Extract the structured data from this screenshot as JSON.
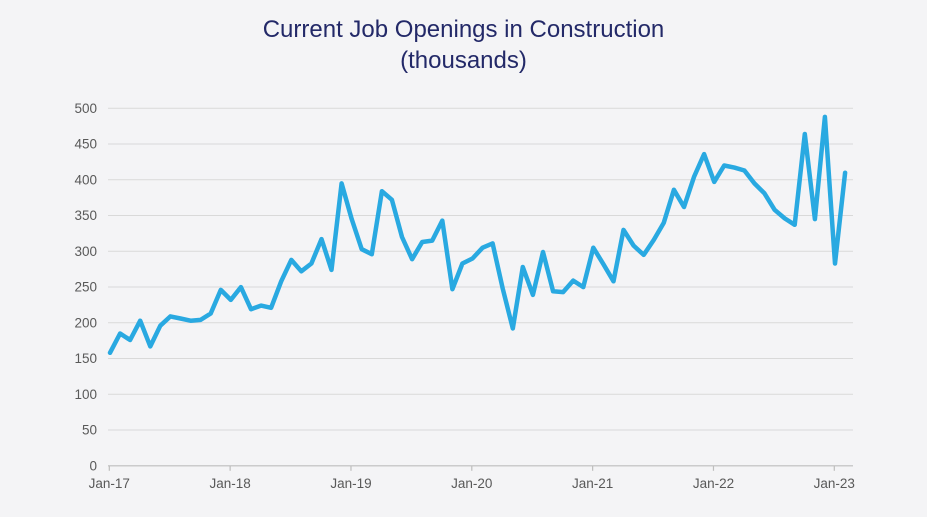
{
  "title": {
    "line1": "Current Job Openings in Construction",
    "line2": "(thousands)"
  },
  "colors": {
    "line": "#29a9e1",
    "title": "#232968",
    "background": "#f4f4f6",
    "gridline": "#d9d9d9",
    "axis": "#bdbdbd",
    "tick_label": "#595959"
  },
  "chart_data": {
    "type": "line",
    "title": "Current Job Openings in Construction (thousands)",
    "xlabel": "",
    "ylabel": "",
    "ylim": [
      0,
      500
    ],
    "y_tick_step": 50,
    "grid": true,
    "legend": "none",
    "x_tick_labels": [
      "Jan-17",
      "Jan-18",
      "Jan-19",
      "Jan-20",
      "Jan-21",
      "Jan-22",
      "Jan-23"
    ],
    "x_tick_indices": [
      0,
      12,
      24,
      36,
      48,
      60,
      72
    ],
    "months": [
      "Jan-17",
      "Feb-17",
      "Mar-17",
      "Apr-17",
      "May-17",
      "Jun-17",
      "Jul-17",
      "Aug-17",
      "Sep-17",
      "Oct-17",
      "Nov-17",
      "Dec-17",
      "Jan-18",
      "Feb-18",
      "Mar-18",
      "Apr-18",
      "May-18",
      "Jun-18",
      "Jul-18",
      "Aug-18",
      "Sep-18",
      "Oct-18",
      "Nov-18",
      "Dec-18",
      "Jan-19",
      "Feb-19",
      "Mar-19",
      "Apr-19",
      "May-19",
      "Jun-19",
      "Jul-19",
      "Aug-19",
      "Sep-19",
      "Oct-19",
      "Nov-19",
      "Dec-19",
      "Jan-20",
      "Feb-20",
      "Mar-20",
      "Apr-20",
      "May-20",
      "Jun-20",
      "Jul-20",
      "Aug-20",
      "Sep-20",
      "Oct-20",
      "Nov-20",
      "Dec-20",
      "Jan-21",
      "Feb-21",
      "Mar-21",
      "Apr-21",
      "May-21",
      "Jun-21",
      "Jul-21",
      "Aug-21",
      "Sep-21",
      "Oct-21",
      "Nov-21",
      "Dec-21",
      "Jan-22",
      "Feb-22",
      "Mar-22",
      "Apr-22",
      "May-22",
      "Jun-22",
      "Jul-22",
      "Aug-22",
      "Sep-22",
      "Oct-22",
      "Nov-22",
      "Dec-22",
      "Jan-23",
      "Feb-23"
    ],
    "values": [
      158,
      185,
      176,
      203,
      167,
      196,
      209,
      206,
      203,
      204,
      213,
      246,
      232,
      250,
      219,
      224,
      221,
      258,
      288,
      272,
      283,
      317,
      274,
      395,
      345,
      303,
      296,
      384,
      372,
      320,
      289,
      313,
      315,
      343,
      247,
      283,
      290,
      305,
      311,
      248,
      192,
      278,
      239,
      299,
      244,
      243,
      259,
      250,
      305,
      282,
      258,
      330,
      308,
      295,
      316,
      340,
      386,
      362,
      404,
      436,
      397,
      420,
      417,
      413,
      395,
      381,
      358,
      346,
      337,
      464,
      345,
      488,
      283,
      410
    ]
  }
}
